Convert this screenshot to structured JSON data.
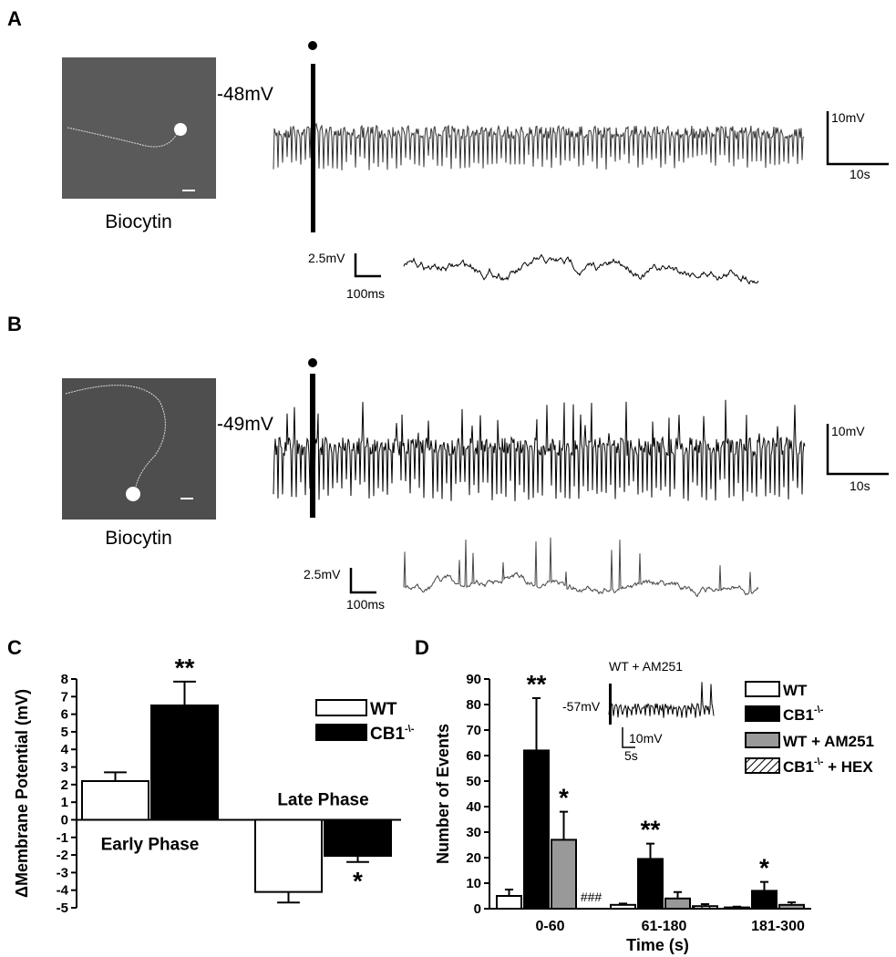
{
  "panels": [
    {
      "label": "A",
      "image_caption": "Biocytin",
      "holding": "-48mV",
      "scale_v": "10mV",
      "scale_h": "10s",
      "inset_scale_v": "2.5mV",
      "inset_scale_h": "100ms"
    },
    {
      "label": "B",
      "image_caption": "Biocytin",
      "holding": "-49mV",
      "scale_v": "10mV",
      "scale_h": "10s",
      "inset_scale_v": "2.5mV",
      "inset_scale_h": "100ms"
    }
  ],
  "chart_data": [
    {
      "type": "bar",
      "label": "C",
      "ylabel": "ΔMembrane Potential (mV)",
      "categories": [
        "Early Phase",
        "Late Phase"
      ],
      "series": [
        {
          "name": "WT",
          "color": "#ffffff",
          "values": [
            2.2,
            -4.1
          ],
          "errors": [
            0.5,
            0.6
          ],
          "annotations": [
            null,
            null
          ]
        },
        {
          "name": "CB1-\\-",
          "color": "#000000",
          "values": [
            6.5,
            -2.05
          ],
          "errors": [
            1.35,
            0.35
          ],
          "annotations": [
            "**",
            "*"
          ]
        }
      ],
      "ylim": [
        -5,
        8
      ],
      "yticks": [
        -5,
        -4,
        -3,
        -2,
        -1,
        0,
        1,
        2,
        3,
        4,
        5,
        6,
        7,
        8
      ],
      "legend": "upper right"
    },
    {
      "type": "bar",
      "label": "D",
      "ylabel": "Number of Events",
      "xlabel": "Time (s)",
      "categories": [
        "0-60",
        "61-180",
        "181-300"
      ],
      "series": [
        {
          "name": "WT",
          "color": "#ffffff",
          "values": [
            5,
            1.5,
            0.5
          ],
          "errors": [
            2.5,
            0.5,
            0.3
          ],
          "annotations": [
            null,
            null,
            null
          ]
        },
        {
          "name": "CB1-\\-",
          "color": "#000000",
          "values": [
            62,
            19.5,
            7
          ],
          "errors": [
            20.5,
            6,
            3.5
          ],
          "annotations": [
            "**",
            "**",
            "*"
          ]
        },
        {
          "name": "WT + AM251",
          "color": "#999999",
          "values": [
            27,
            4,
            1.5
          ],
          "errors": [
            11,
            2.5,
            1
          ],
          "annotations": [
            "*",
            null,
            null
          ]
        },
        {
          "name": "CB1-\\- + HEX",
          "color": "#ffffff",
          "hatch": true,
          "values": [
            null,
            1,
            null
          ],
          "errors": [
            null,
            0.8,
            null
          ],
          "annotations": [
            "###",
            null,
            null
          ]
        }
      ],
      "ylim": [
        0,
        90
      ],
      "yticks": [
        0,
        10,
        20,
        30,
        40,
        50,
        60,
        70,
        80,
        90
      ],
      "legend": "upper right",
      "inset": {
        "title": "WT + AM251",
        "holding": "-57mV",
        "scale_v": "10mV",
        "scale_h": "5s"
      }
    }
  ]
}
